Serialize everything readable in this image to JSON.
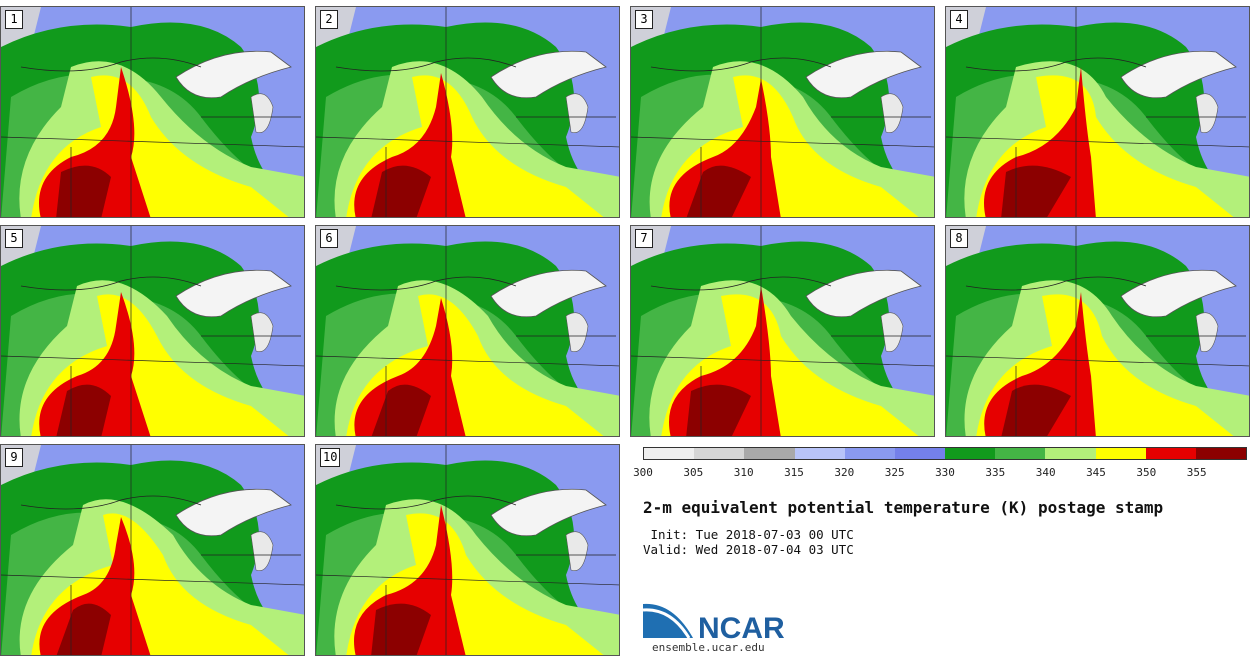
{
  "panels": [
    {
      "label": "1"
    },
    {
      "label": "2"
    },
    {
      "label": "3"
    },
    {
      "label": "4"
    },
    {
      "label": "5"
    },
    {
      "label": "6"
    },
    {
      "label": "7"
    },
    {
      "label": "8"
    },
    {
      "label": "9"
    },
    {
      "label": "10"
    }
  ],
  "colorbar": {
    "colors": [
      "#efefef",
      "#d6d6d6",
      "#a9a9a9",
      "#b8c4f8",
      "#8a9af0",
      "#7480ea",
      "#119a1c",
      "#44b545",
      "#b3f07a",
      "#ffff00",
      "#e60000",
      "#8c0000"
    ],
    "ticks": [
      "300",
      "305",
      "310",
      "315",
      "320",
      "325",
      "330",
      "335",
      "340",
      "345",
      "350",
      "355"
    ]
  },
  "title": "2-m equivalent potential temperature (K) postage stamp",
  "init": " Init: Tue 2018-07-03 00 UTC",
  "valid": "Valid: Wed 2018-07-04 03 UTC",
  "logo": {
    "text": "NCAR",
    "color": "#1f5fa0"
  },
  "url": "ensemble.ucar.edu"
}
